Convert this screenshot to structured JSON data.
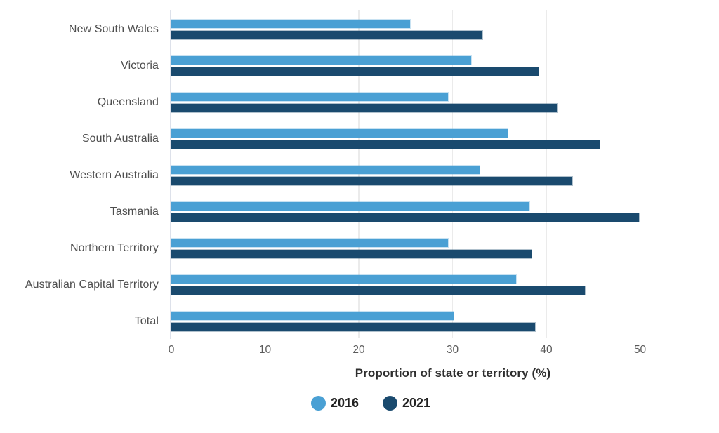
{
  "chart_data": {
    "type": "bar",
    "orientation": "horizontal",
    "title": "",
    "xlabel": "Proportion of state or territory (%)",
    "ylabel": "",
    "categories": [
      "New South Wales",
      "Victoria",
      "Queensland",
      "South Australia",
      "Western Australia",
      "Tasmania",
      "Northern Territory",
      "Australian Capital Territory",
      "Total"
    ],
    "series": [
      {
        "name": "2016",
        "color": "#4aa0d4",
        "values": [
          25.5,
          32.0,
          29.5,
          35.9,
          32.9,
          38.2,
          29.5,
          36.8,
          30.1
        ]
      },
      {
        "name": "2021",
        "color": "#1a4a6e",
        "values": [
          33.2,
          39.2,
          41.1,
          45.7,
          42.8,
          49.9,
          38.4,
          44.1,
          38.8
        ]
      }
    ],
    "x_ticks": [
      0,
      10,
      20,
      30,
      40,
      50
    ],
    "xlim": [
      0,
      55.8
    ],
    "grid": "vertical",
    "legend_position": "bottom"
  },
  "colors": {
    "background": "#ffffff",
    "gridline": "#ebebeb",
    "zero_axis": "#dde1ea",
    "category_label": "#4e4e4e",
    "tick_label": "#5a5a5a",
    "axis_title": "#2e2e2e",
    "legend_text": "#222222"
  }
}
